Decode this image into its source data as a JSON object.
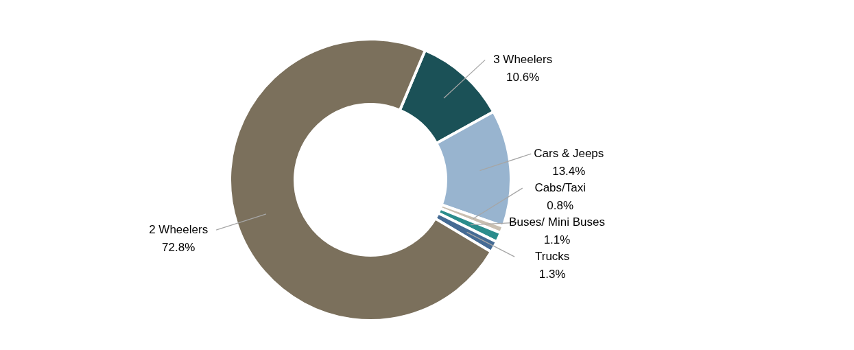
{
  "chart_data": {
    "type": "donut",
    "categories": [
      "3 Wheelers",
      "Cars & Jeeps",
      "Cabs/Taxi",
      "Buses/ Mini Buses",
      "Trucks",
      "2 Wheelers"
    ],
    "values": [
      10.6,
      13.4,
      0.8,
      1.1,
      1.3,
      72.8
    ],
    "value_labels": [
      "10.6%",
      "13.4%",
      "0.8%",
      "1.1%",
      "1.3%",
      "72.8%"
    ],
    "colors": [
      "#1b5157",
      "#98b4cf",
      "#c9bfb1",
      "#2a8c8c",
      "#456b94",
      "#7b705c"
    ]
  }
}
